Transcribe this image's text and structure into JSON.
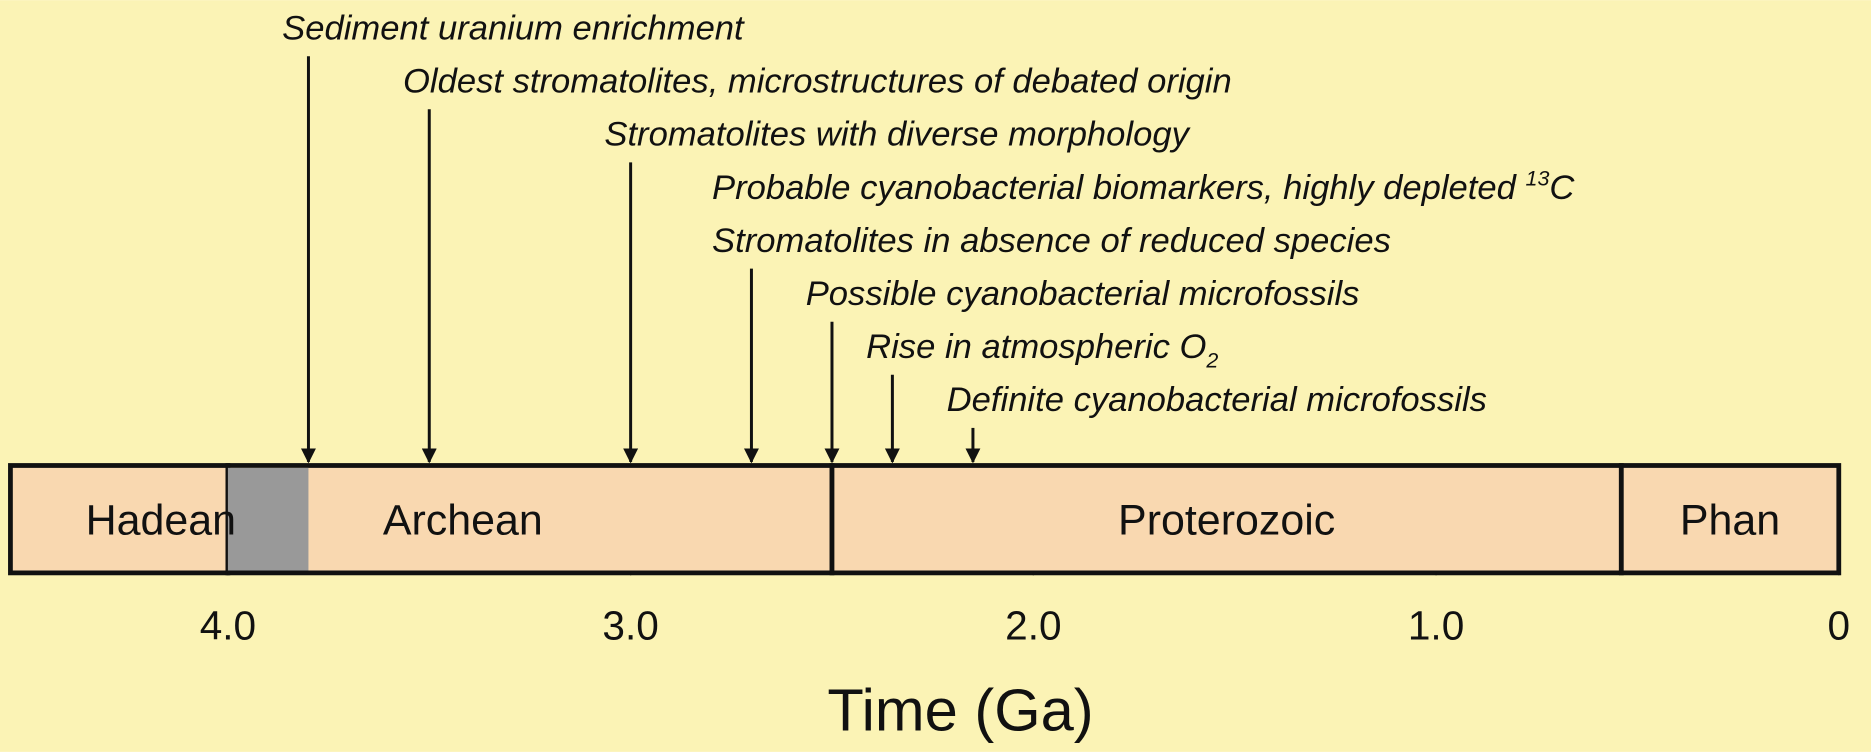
{
  "chart_data": {
    "type": "timeline",
    "xlabel": "Time (Ga)",
    "xlim": [
      4.54,
      0
    ],
    "xticks": [
      {
        "value": 4,
        "label": "4.0"
      },
      {
        "value": 3,
        "label": "3.0"
      },
      {
        "value": 2,
        "label": "2.0"
      },
      {
        "value": 1,
        "label": "1.0"
      },
      0
    ],
    "background": "#fbf3b5",
    "era_color": "#f9d8b0",
    "eras": [
      {
        "name": "Hadean",
        "start": 4.54,
        "end": 4.0
      },
      {
        "name": "Archean",
        "start": 4.0,
        "end": 2.5
      },
      {
        "name": "Proterozoic",
        "start": 2.5,
        "end": 0.54
      },
      {
        "name": "Phan",
        "start": 0.54,
        "end": 0
      }
    ],
    "shaded": {
      "start": 4.0,
      "end": 3.8,
      "color": "#999999"
    },
    "events": [
      {
        "label": "Sediment uranium enrichment",
        "time": 3.8
      },
      {
        "label": "Oldest stromatolites, microstructures of debated origin",
        "time": 3.5
      },
      {
        "label": "Stromatolites with diverse morphology",
        "time": 3.0
      },
      {
        "label": "Probable cyanobacterial biomarkers, highly depleted ",
        "superscript": "13",
        "label_end": "C",
        "time": 2.7
      },
      {
        "label": "Stromatolites in absence of reduced species",
        "time": 2.7
      },
      {
        "label": "Possible cyanobacterial microfossils",
        "time": 2.5
      },
      {
        "label": "Rise in atmospheric O",
        "subscript": "2",
        "time": 2.35
      },
      {
        "label": "Definite cyanobacterial microfossils",
        "time": 2.15
      }
    ]
  }
}
